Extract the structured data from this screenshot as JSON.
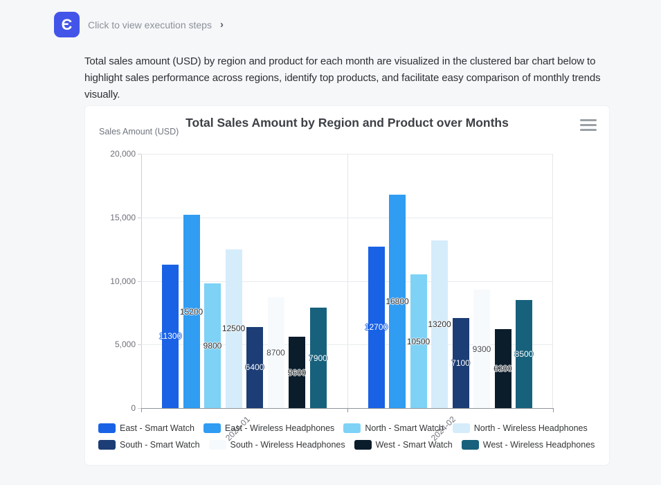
{
  "header": {
    "app_icon_glyph": "Є",
    "link_label": "Click to view execution steps",
    "chevron_glyph": "›"
  },
  "description": "Total sales amount (USD) by region and product for each month are visualized in the clustered bar chart below to highlight sales performance across regions, identify top products, and facilitate easy comparison of monthly trends visually.",
  "chart_card": {
    "title": "Total Sales Amount by Region and Product over Months",
    "y_axis_name": "Sales Amount (USD)",
    "menu_icon": "hamburger-menu"
  },
  "chart_data": {
    "type": "bar",
    "title": "Total Sales Amount by Region and Product over Months",
    "xlabel": "",
    "ylabel": "Sales Amount (USD)",
    "categories": [
      "2024-01",
      "2024-02"
    ],
    "ylim": [
      0,
      20000
    ],
    "y_ticks": [
      {
        "value": 0,
        "label": "0"
      },
      {
        "value": 5000,
        "label": "5,000"
      },
      {
        "value": 10000,
        "label": "10,000"
      },
      {
        "value": 15000,
        "label": "15,000"
      },
      {
        "value": 20000,
        "label": "20,000"
      }
    ],
    "grid": true,
    "legend_position": "bottom",
    "series": [
      {
        "name": "East - Smart Watch",
        "color": "#1A62E5",
        "label_color": "#ffffff",
        "label_halo": "#1A62E5",
        "values": [
          11300,
          12700
        ]
      },
      {
        "name": "East - Wireless Headphones",
        "color": "#309CF2",
        "label_color": "#24282c",
        "label_halo": "#ffffff",
        "values": [
          15200,
          16800
        ]
      },
      {
        "name": "North - Smart Watch",
        "color": "#7DD2F6",
        "label_color": "#24282c",
        "label_halo": "#ffffff",
        "values": [
          9800,
          10500
        ]
      },
      {
        "name": "North - Wireless Headphones",
        "color": "#D5ECFB",
        "label_color": "#24282c",
        "label_halo": "#ffffff",
        "values": [
          12500,
          13200
        ]
      },
      {
        "name": "South - Smart Watch",
        "color": "#1C3D75",
        "label_color": "#ffffff",
        "label_halo": "#1C3D75",
        "values": [
          6400,
          7100
        ]
      },
      {
        "name": "South - Wireless Headphones",
        "color": "#F7FAFD",
        "label_color": "#44494e",
        "label_halo": "#ffffff",
        "values": [
          8700,
          9300
        ]
      },
      {
        "name": "West - Smart Watch",
        "color": "#0B1C2B",
        "label_color": "#1a1e22",
        "label_halo": "#ffffff",
        "values": [
          5600,
          6200
        ]
      },
      {
        "name": "West - Wireless Headphones",
        "color": "#17617C",
        "label_color": "#ffffff",
        "label_halo": "#17617C",
        "values": [
          7900,
          8500
        ]
      }
    ]
  }
}
